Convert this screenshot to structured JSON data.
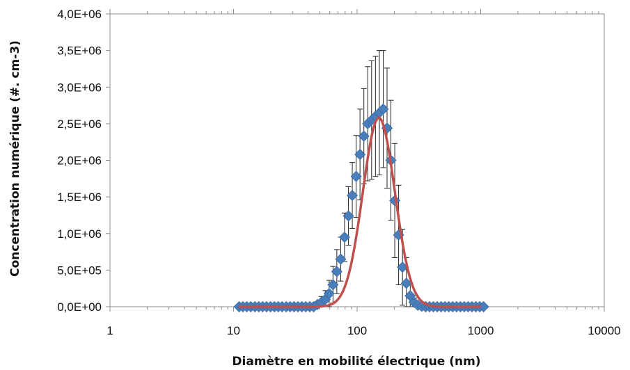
{
  "chart_data": {
    "type": "scatter",
    "title": "",
    "xlabel": "Diamètre en mobilité électrique (nm)",
    "ylabel": "Concentration numérique (#. cm-3)",
    "x_scale": "log",
    "xlim": [
      1,
      10000
    ],
    "ylim": [
      0,
      4000000
    ],
    "x_tick_labels": [
      "1",
      "10",
      "100",
      "1000",
      "10000"
    ],
    "y_tick_labels": [
      "0,0E+00",
      "5,0E+05",
      "1,0E+06",
      "1,5E+06",
      "2,0E+06",
      "2,5E+06",
      "3,0E+06",
      "3,5E+06",
      "4,0E+06"
    ],
    "grid": false,
    "legend": "none",
    "series": [
      {
        "kind": "markers-with-error-bars",
        "color": "#4a7ebb",
        "marker": "diamond",
        "x": [
          11.1,
          11.9,
          12.8,
          13.8,
          14.9,
          16.0,
          17.2,
          18.5,
          19.9,
          21.4,
          23.0,
          24.7,
          26.7,
          28.7,
          30.9,
          33.2,
          35.7,
          38.4,
          41.4,
          44.5,
          47.8,
          51.4,
          55.3,
          59.4,
          63.8,
          68.5,
          73.7,
          79.1,
          85.1,
          91.4,
          98.2,
          105.5,
          113.4,
          121.9,
          131.0,
          140.8,
          151.3,
          162.6,
          174.7,
          187.7,
          201.7,
          216.7,
          232.9,
          250.3,
          269.0,
          289.0,
          310.6,
          333.8,
          358.7,
          385.4,
          414.2,
          445.1,
          478.3,
          514.0,
          552.3,
          593.5,
          637.8,
          685.4,
          736.5,
          791.5,
          850.5,
          914.0,
          982.2,
          1055.0
        ],
        "y": [
          0,
          0,
          0,
          0,
          0,
          0,
          0,
          0,
          0,
          0,
          0,
          0,
          0,
          0,
          0,
          0,
          0,
          0,
          0,
          0,
          30000,
          60000,
          100000,
          180000,
          300000,
          480000,
          650000,
          950000,
          1240000,
          1520000,
          1780000,
          2080000,
          2330000,
          2500000,
          2550000,
          2600000,
          2650000,
          2700000,
          2440000,
          2000000,
          1450000,
          980000,
          540000,
          320000,
          150000,
          60000,
          20000,
          5000,
          0,
          0,
          0,
          0,
          0,
          0,
          0,
          0,
          0,
          0,
          0,
          0,
          0,
          0,
          0,
          0
        ],
        "error": [
          0,
          0,
          0,
          0,
          0,
          0,
          0,
          0,
          0,
          0,
          0,
          0,
          0,
          0,
          0,
          0,
          0,
          0,
          0,
          0,
          40000,
          80000,
          120000,
          180000,
          250000,
          300000,
          300000,
          330000,
          400000,
          450000,
          560000,
          620000,
          650000,
          780000,
          810000,
          820000,
          850000,
          800000,
          820000,
          820000,
          780000,
          680000,
          520000,
          350000,
          180000,
          60000,
          20000,
          5000,
          0,
          0,
          0,
          0,
          0,
          0,
          0,
          0,
          0,
          0,
          0,
          0,
          0,
          0,
          0,
          0
        ]
      },
      {
        "kind": "fit-line",
        "color": "#c0504d",
        "peak_x": 150,
        "peak_y": 2580000,
        "log_sigma": 0.13,
        "x_range": [
          11,
          1000
        ]
      }
    ]
  }
}
